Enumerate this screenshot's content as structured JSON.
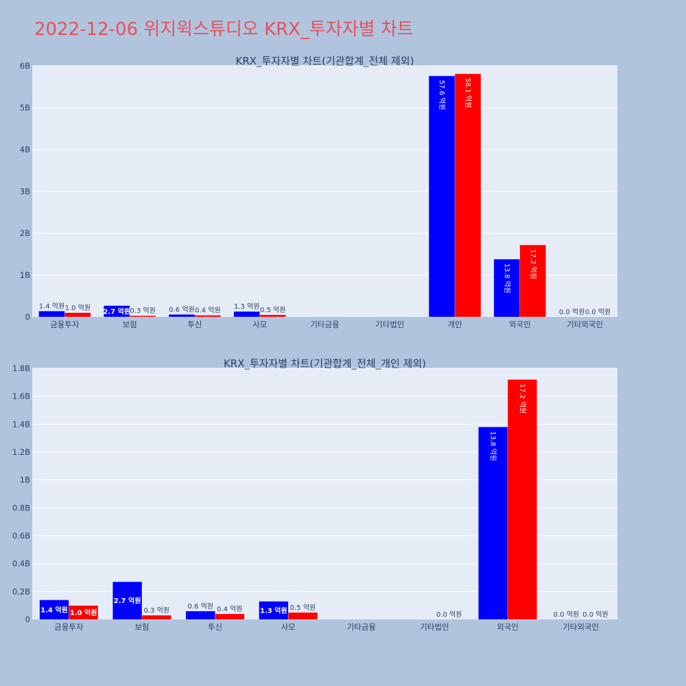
{
  "page_title": "2022-12-06 위지윅스튜디오 KRX_투자자별 차트",
  "colors": {
    "series1": "#0000ff",
    "series2": "#ff0000",
    "title": "#e8505b"
  },
  "chart_data": [
    {
      "type": "bar",
      "title": "KRX_투자자별 차트(기관합계_전체 제외)",
      "categories": [
        "금융투자",
        "보험",
        "투신",
        "사모",
        "기타금융",
        "기타법인",
        "개인",
        "외국인",
        "기타외국인"
      ],
      "ylim": [
        0,
        6000000000
      ],
      "yticks": [
        0,
        1000000000,
        2000000000,
        3000000000,
        4000000000,
        5000000000,
        6000000000
      ],
      "yticklabels": [
        "0",
        "1B",
        "2B",
        "3B",
        "4B",
        "5B",
        "6B"
      ],
      "series": [
        {
          "values": [
            140000000,
            270000000,
            60000000,
            130000000,
            0,
            0,
            5760000000,
            1380000000,
            0
          ],
          "labels": [
            "1.4 억원",
            "2.7 억원",
            "0.6 억원",
            "1.3 억원",
            "",
            "",
            "57.6 억원",
            "13.8 억원",
            "0.0 억원"
          ]
        },
        {
          "values": [
            100000000,
            30000000,
            40000000,
            50000000,
            0,
            0,
            5810000000,
            1720000000,
            0
          ],
          "labels": [
            "1.0 억원",
            "0.3 억원",
            "0.4 억원",
            "0.5 억원",
            "",
            "",
            "58.1 억원",
            "17.2 억원",
            "0.0 억원"
          ]
        }
      ]
    },
    {
      "type": "bar",
      "title": "KRX_투자자별 차트(기관합계_전체_개인 제외)",
      "categories": [
        "금융투자",
        "보험",
        "투신",
        "사모",
        "기타금융",
        "기타법인",
        "외국인",
        "기타외국인"
      ],
      "ylim": [
        0,
        1800000000
      ],
      "yticks": [
        0,
        200000000,
        400000000,
        600000000,
        800000000,
        1000000000,
        1200000000,
        1400000000,
        1600000000,
        1800000000
      ],
      "yticklabels": [
        "0",
        "0.2B",
        "0.4B",
        "0.6B",
        "0.8B",
        "1B",
        "1.2B",
        "1.4B",
        "1.6B",
        "1.8B"
      ],
      "series": [
        {
          "values": [
            140000000,
            270000000,
            60000000,
            130000000,
            0,
            0,
            1380000000,
            0
          ],
          "labels": [
            "1.4 억원",
            "2.7 억원",
            "0.6 억원",
            "1.3 억원",
            "",
            "",
            "13.8 억원",
            "0.0 억원"
          ]
        },
        {
          "values": [
            100000000,
            30000000,
            40000000,
            50000000,
            0,
            0,
            1720000000,
            0
          ],
          "labels": [
            "1.0 억원",
            "0.3 억원",
            "0.4 억원",
            "0.5 억원",
            "",
            "0.0 억원",
            "17.2 억원",
            "0.0 억원"
          ]
        }
      ]
    }
  ]
}
